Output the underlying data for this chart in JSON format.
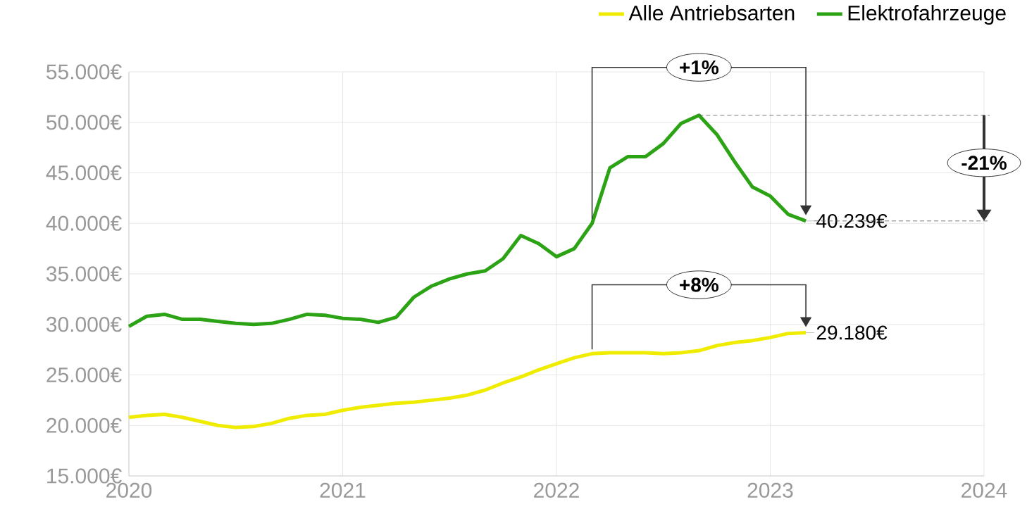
{
  "chart_data": {
    "type": "line",
    "x": [
      "2020-01",
      "2020-02",
      "2020-03",
      "2020-04",
      "2020-05",
      "2020-06",
      "2020-07",
      "2020-08",
      "2020-09",
      "2020-10",
      "2020-11",
      "2020-12",
      "2021-01",
      "2021-02",
      "2021-03",
      "2021-04",
      "2021-05",
      "2021-06",
      "2021-07",
      "2021-08",
      "2021-09",
      "2021-10",
      "2021-11",
      "2021-12",
      "2022-01",
      "2022-02",
      "2022-03",
      "2022-04",
      "2022-05",
      "2022-06",
      "2022-07",
      "2022-08",
      "2022-09",
      "2022-10",
      "2022-11",
      "2022-12",
      "2023-01",
      "2023-02",
      "2023-03"
    ],
    "series": [
      {
        "name": "Alle Antriebsarten",
        "color": "#f0ec00",
        "values": [
          20800,
          21000,
          21100,
          20800,
          20400,
          20000,
          19800,
          19900,
          20200,
          20700,
          21000,
          21100,
          21500,
          21800,
          22000,
          22200,
          22300,
          22500,
          22700,
          23000,
          23500,
          24200,
          24800,
          25500,
          26100,
          26700,
          27100,
          27200,
          27200,
          27200,
          27100,
          27200,
          27400,
          27900,
          28200,
          28400,
          28700,
          29100,
          29180
        ]
      },
      {
        "name": "Elektrofahrzeuge",
        "color": "#2ba315",
        "values": [
          29800,
          30800,
          31000,
          30500,
          30500,
          30300,
          30100,
          30000,
          30100,
          30500,
          31000,
          30900,
          30600,
          30500,
          30200,
          30700,
          32700,
          33800,
          34500,
          35000,
          35300,
          36500,
          38800,
          38000,
          36700,
          37500,
          40000,
          45500,
          46600,
          46600,
          47900,
          49900,
          50700,
          48800,
          46100,
          43600,
          42700,
          40900,
          40239
        ]
      }
    ],
    "xlim": [
      "2020-01",
      "2024-01"
    ],
    "xticks": [
      "2020",
      "2021",
      "2022",
      "2023",
      "2024"
    ],
    "ylim": [
      15000,
      55000
    ],
    "yticks": [
      {
        "value": 15000,
        "label": "15.000€"
      },
      {
        "value": 20000,
        "label": "20.000€"
      },
      {
        "value": 25000,
        "label": "25.000€"
      },
      {
        "value": 30000,
        "label": "30.000€"
      },
      {
        "value": 35000,
        "label": "35.000€"
      },
      {
        "value": 40000,
        "label": "40.000€"
      },
      {
        "value": 45000,
        "label": "45.000€"
      },
      {
        "value": 50000,
        "label": "50.000€"
      },
      {
        "value": 55000,
        "label": "55.000€"
      }
    ],
    "grid": true,
    "legend": "top right",
    "annotations": [
      "+1%",
      "+8%",
      "-21%",
      {
        "text": "40.239€",
        "x": "2023-03",
        "y": 40239
      },
      {
        "text": "29.180€",
        "x": "2023-03",
        "y": 29180
      }
    ]
  }
}
